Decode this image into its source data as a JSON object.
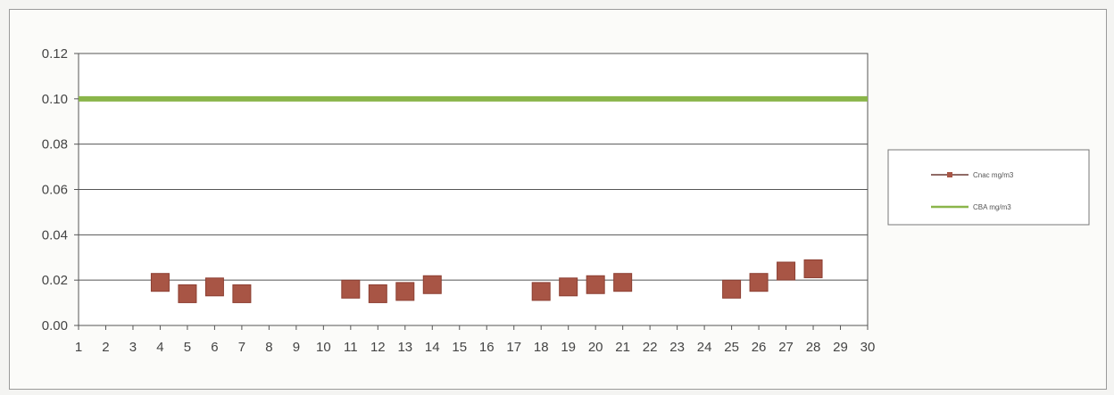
{
  "chart_data": {
    "type": "line",
    "x_categories": [
      "1",
      "2",
      "3",
      "4",
      "5",
      "6",
      "7",
      "8",
      "9",
      "10",
      "11",
      "12",
      "13",
      "14",
      "15",
      "16",
      "17",
      "18",
      "19",
      "20",
      "21",
      "22",
      "23",
      "24",
      "25",
      "26",
      "27",
      "28",
      "29",
      "30"
    ],
    "y_ticks": [
      "0.00",
      "0.02",
      "0.04",
      "0.06",
      "0.08",
      "0.10",
      "0.12"
    ],
    "ylim": [
      0,
      0.12
    ],
    "grid": "horizontal",
    "legend_position": "right",
    "series": [
      {
        "name": "Cnac mg/m3",
        "color": "#a85545",
        "marker": "square",
        "points": [
          {
            "x": 4,
            "y": 0.019
          },
          {
            "x": 5,
            "y": 0.014
          },
          {
            "x": 6,
            "y": 0.017
          },
          {
            "x": 7,
            "y": 0.014
          },
          {
            "x": 11,
            "y": 0.016
          },
          {
            "x": 12,
            "y": 0.014
          },
          {
            "x": 13,
            "y": 0.015
          },
          {
            "x": 14,
            "y": 0.018
          },
          {
            "x": 18,
            "y": 0.015
          },
          {
            "x": 19,
            "y": 0.017
          },
          {
            "x": 20,
            "y": 0.018
          },
          {
            "x": 21,
            "y": 0.019
          },
          {
            "x": 25,
            "y": 0.016
          },
          {
            "x": 26,
            "y": 0.019
          },
          {
            "x": 27,
            "y": 0.024
          },
          {
            "x": 28,
            "y": 0.025
          }
        ]
      },
      {
        "name": "CBA mg/m3",
        "color": "#8ab54a",
        "marker": "none",
        "points": [
          {
            "x": 1,
            "y": 0.1
          },
          {
            "x": 30,
            "y": 0.1
          }
        ]
      }
    ]
  }
}
